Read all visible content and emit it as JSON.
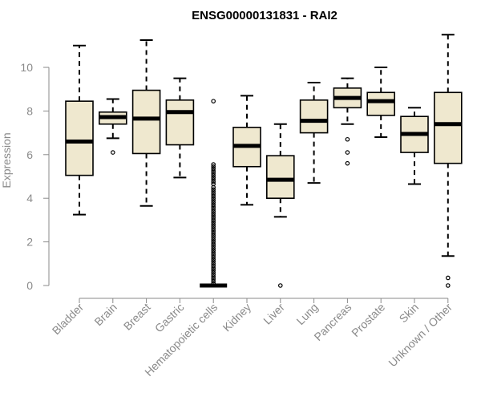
{
  "chart_data": {
    "type": "box",
    "title": "ENSG00000131831 - RAI2",
    "xlabel": "",
    "ylabel": "Expression",
    "ylim": [
      0,
      11.5
    ],
    "yticks": [
      0,
      2,
      4,
      6,
      8,
      10
    ],
    "categories": [
      "Bladder",
      "Brain",
      "Breast",
      "Gastric",
      "Hematopoietic cells",
      "Kidney",
      "Liver",
      "Lung",
      "Pancreas",
      "Prostate",
      "Skin",
      "Unknown / Other"
    ],
    "boxes": [
      {
        "name": "Bladder",
        "min": 3.25,
        "q1": 5.05,
        "median": 6.6,
        "q3": 8.45,
        "max": 11.0,
        "outliers": []
      },
      {
        "name": "Brain",
        "min": 6.75,
        "q1": 7.4,
        "median": 7.72,
        "q3": 7.95,
        "max": 8.55,
        "outliers": [
          6.1
        ]
      },
      {
        "name": "Breast",
        "min": 3.65,
        "q1": 6.05,
        "median": 7.65,
        "q3": 8.95,
        "max": 11.25,
        "outliers": []
      },
      {
        "name": "Gastric",
        "min": 4.95,
        "q1": 6.45,
        "median": 7.95,
        "q3": 8.5,
        "max": 9.5,
        "outliers": []
      },
      {
        "name": "Hematopoietic cells",
        "min": 0,
        "q1": 0,
        "median": 0,
        "q3": 0,
        "max": 0,
        "outliers": [
          8.45,
          5.55,
          5.45,
          5.35,
          5.25,
          5.15,
          5.05,
          4.95,
          4.85,
          4.75,
          4.65,
          4.5,
          4.4,
          4.3,
          4.2,
          4.1,
          4.0,
          3.9,
          3.8,
          3.7,
          3.6,
          3.5,
          3.4,
          3.3,
          3.2,
          3.1,
          3.0,
          2.9,
          2.8,
          2.7,
          2.6,
          2.5,
          2.4,
          2.3,
          2.2,
          2.1,
          2.0,
          1.9,
          1.8,
          1.7,
          1.6,
          1.5,
          1.4,
          1.3,
          1.2,
          1.1,
          1.0,
          0.9,
          0.8,
          0.7,
          0.6,
          0.5,
          0.4,
          0.3,
          0.2,
          0.1
        ]
      },
      {
        "name": "Kidney",
        "min": 3.7,
        "q1": 5.45,
        "median": 6.4,
        "q3": 7.25,
        "max": 8.7,
        "outliers": []
      },
      {
        "name": "Liver",
        "min": 3.15,
        "q1": 4.0,
        "median": 4.85,
        "q3": 5.95,
        "max": 7.4,
        "outliers": [
          0.0
        ]
      },
      {
        "name": "Lung",
        "min": 4.7,
        "q1": 7.0,
        "median": 7.55,
        "q3": 8.5,
        "max": 9.3,
        "outliers": []
      },
      {
        "name": "Pancreas",
        "min": 7.4,
        "q1": 8.15,
        "median": 8.6,
        "q3": 9.05,
        "max": 9.5,
        "outliers": [
          6.7,
          6.1,
          5.6
        ]
      },
      {
        "name": "Prostate",
        "min": 6.8,
        "q1": 7.8,
        "median": 8.45,
        "q3": 8.85,
        "max": 10.0,
        "outliers": []
      },
      {
        "name": "Skin",
        "min": 4.65,
        "q1": 6.1,
        "median": 6.95,
        "q3": 7.75,
        "max": 8.15,
        "outliers": []
      },
      {
        "name": "Unknown / Other",
        "min": 1.35,
        "q1": 5.6,
        "median": 7.4,
        "q3": 8.85,
        "max": 11.5,
        "outliers": [
          0.35,
          0.0
        ]
      }
    ],
    "colors": {
      "box_fill": "#efe8cf",
      "box_stroke": "#000000",
      "axis": "#8a8a8a"
    },
    "grid": false
  }
}
